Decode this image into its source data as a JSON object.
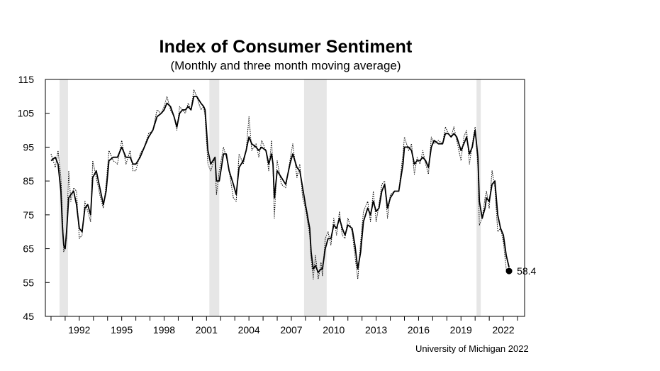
{
  "chart_data": {
    "type": "line",
    "title": "Index of Consumer Sentiment",
    "subtitle": "(Monthly and three month moving average)",
    "source": "University of Michigan 2022",
    "ylim": [
      45,
      115
    ],
    "xlim": [
      1989.6,
      2023.5
    ],
    "y_ticks": [
      45,
      55,
      65,
      75,
      85,
      95,
      105,
      115
    ],
    "x_ticks": [
      1992,
      1995,
      1998,
      2001,
      2004,
      2007,
      2010,
      2013,
      2016,
      2019,
      2022
    ],
    "recessions": [
      [
        1990.6,
        1991.2
      ],
      [
        2001.2,
        2001.9
      ],
      [
        2007.9,
        2009.5
      ],
      [
        2020.1,
        2020.4
      ]
    ],
    "last_point": {
      "x": 2022.4,
      "y": 58.4,
      "label": "58.4"
    },
    "series": [
      {
        "name": "Monthly",
        "style": "dotted",
        "points": [
          [
            1990.0,
            93
          ],
          [
            1990.3,
            89
          ],
          [
            1990.5,
            94
          ],
          [
            1990.7,
            86
          ],
          [
            1990.8,
            76
          ],
          [
            1990.9,
            64
          ],
          [
            1991.0,
            66
          ],
          [
            1991.1,
            68
          ],
          [
            1991.25,
            88
          ],
          [
            1991.4,
            79
          ],
          [
            1991.6,
            83
          ],
          [
            1991.8,
            82
          ],
          [
            1992.0,
            68
          ],
          [
            1992.2,
            69
          ],
          [
            1992.4,
            79
          ],
          [
            1992.6,
            76
          ],
          [
            1992.8,
            73
          ],
          [
            1992.95,
            91
          ],
          [
            1993.2,
            86
          ],
          [
            1993.5,
            80
          ],
          [
            1993.7,
            77
          ],
          [
            1993.9,
            84
          ],
          [
            1994.1,
            94
          ],
          [
            1994.4,
            91
          ],
          [
            1994.7,
            90
          ],
          [
            1995.0,
            97
          ],
          [
            1995.3,
            90
          ],
          [
            1995.6,
            94
          ],
          [
            1995.8,
            88
          ],
          [
            1996.0,
            88
          ],
          [
            1996.3,
            93
          ],
          [
            1996.6,
            95
          ],
          [
            1996.9,
            99
          ],
          [
            1997.2,
            100
          ],
          [
            1997.5,
            106
          ],
          [
            1997.8,
            105
          ],
          [
            1998.0,
            107
          ],
          [
            1998.2,
            110
          ],
          [
            1998.45,
            106
          ],
          [
            1998.7,
            104
          ],
          [
            1998.9,
            100
          ],
          [
            1999.1,
            107
          ],
          [
            1999.3,
            106
          ],
          [
            1999.5,
            105
          ],
          [
            1999.7,
            108
          ],
          [
            1999.9,
            106
          ],
          [
            2000.1,
            112
          ],
          [
            2000.3,
            110
          ],
          [
            2000.6,
            106
          ],
          [
            2000.8,
            107
          ],
          [
            2000.9,
            104
          ],
          [
            2001.1,
            90
          ],
          [
            2001.3,
            88
          ],
          [
            2001.6,
            92
          ],
          [
            2001.7,
            81
          ],
          [
            2001.9,
            88
          ],
          [
            2002.2,
            95
          ],
          [
            2002.4,
            92
          ],
          [
            2002.6,
            88
          ],
          [
            2002.9,
            80
          ],
          [
            2003.1,
            79
          ],
          [
            2003.3,
            93
          ],
          [
            2003.6,
            90
          ],
          [
            2003.8,
            94
          ],
          [
            2004.0,
            104
          ],
          [
            2004.2,
            94
          ],
          [
            2004.5,
            96
          ],
          [
            2004.7,
            92
          ],
          [
            2004.9,
            97
          ],
          [
            2005.2,
            94
          ],
          [
            2005.4,
            88
          ],
          [
            2005.6,
            97
          ],
          [
            2005.7,
            89
          ],
          [
            2005.8,
            74
          ],
          [
            2006.0,
            91
          ],
          [
            2006.3,
            84
          ],
          [
            2006.6,
            83
          ],
          [
            2006.9,
            91
          ],
          [
            2007.1,
            96
          ],
          [
            2007.4,
            86
          ],
          [
            2007.6,
            90
          ],
          [
            2007.8,
            80
          ],
          [
            2008.0,
            77
          ],
          [
            2008.3,
            69
          ],
          [
            2008.4,
            62
          ],
          [
            2008.55,
            56
          ],
          [
            2008.7,
            63
          ],
          [
            2008.9,
            56
          ],
          [
            2009.1,
            61
          ],
          [
            2009.2,
            57
          ],
          [
            2009.4,
            68
          ],
          [
            2009.6,
            70
          ],
          [
            2009.8,
            66
          ],
          [
            2010.0,
            74
          ],
          [
            2010.2,
            69
          ],
          [
            2010.4,
            76
          ],
          [
            2010.6,
            69
          ],
          [
            2010.8,
            68
          ],
          [
            2011.0,
            74
          ],
          [
            2011.3,
            70
          ],
          [
            2011.5,
            63
          ],
          [
            2011.7,
            56
          ],
          [
            2011.9,
            67
          ],
          [
            2012.1,
            76
          ],
          [
            2012.4,
            79
          ],
          [
            2012.6,
            73
          ],
          [
            2012.8,
            82
          ],
          [
            2013.0,
            73
          ],
          [
            2013.2,
            78
          ],
          [
            2013.4,
            84
          ],
          [
            2013.6,
            85
          ],
          [
            2013.8,
            74
          ],
          [
            2014.0,
            81
          ],
          [
            2014.3,
            82
          ],
          [
            2014.6,
            82
          ],
          [
            2014.9,
            93
          ],
          [
            2015.0,
            98
          ],
          [
            2015.3,
            94
          ],
          [
            2015.5,
            96
          ],
          [
            2015.7,
            87
          ],
          [
            2015.9,
            92
          ],
          [
            2016.1,
            90
          ],
          [
            2016.3,
            94
          ],
          [
            2016.5,
            90
          ],
          [
            2016.7,
            87
          ],
          [
            2016.9,
            98
          ],
          [
            2017.1,
            96
          ],
          [
            2017.4,
            97
          ],
          [
            2017.7,
            96
          ],
          [
            2017.9,
            101
          ],
          [
            2018.1,
            99
          ],
          [
            2018.3,
            98
          ],
          [
            2018.5,
            101
          ],
          [
            2018.7,
            97
          ],
          [
            2019.0,
            91
          ],
          [
            2019.2,
            98
          ],
          [
            2019.4,
            100
          ],
          [
            2019.6,
            90
          ],
          [
            2019.8,
            96
          ],
          [
            2020.0,
            101
          ],
          [
            2020.2,
            89
          ],
          [
            2020.3,
            72
          ],
          [
            2020.5,
            74
          ],
          [
            2020.7,
            80
          ],
          [
            2020.8,
            82
          ],
          [
            2021.0,
            77
          ],
          [
            2021.2,
            88
          ],
          [
            2021.4,
            83
          ],
          [
            2021.6,
            70
          ],
          [
            2021.8,
            71
          ],
          [
            2022.0,
            67
          ],
          [
            2022.2,
            59
          ],
          [
            2022.4,
            58.4
          ]
        ]
      },
      {
        "name": "Three month moving average",
        "style": "solid",
        "points": [
          [
            1990.0,
            91
          ],
          [
            1990.3,
            92
          ],
          [
            1990.5,
            90
          ],
          [
            1990.7,
            82
          ],
          [
            1990.8,
            72
          ],
          [
            1990.9,
            66
          ],
          [
            1991.0,
            65
          ],
          [
            1991.1,
            70
          ],
          [
            1991.25,
            80
          ],
          [
            1991.4,
            81
          ],
          [
            1991.6,
            82
          ],
          [
            1991.8,
            78
          ],
          [
            1992.0,
            71
          ],
          [
            1992.2,
            70
          ],
          [
            1992.4,
            77
          ],
          [
            1992.6,
            78
          ],
          [
            1992.8,
            75
          ],
          [
            1992.95,
            86
          ],
          [
            1993.2,
            88
          ],
          [
            1993.5,
            82
          ],
          [
            1993.7,
            78
          ],
          [
            1993.9,
            82
          ],
          [
            1994.1,
            91
          ],
          [
            1994.4,
            92
          ],
          [
            1994.7,
            92
          ],
          [
            1995.0,
            95
          ],
          [
            1995.3,
            92
          ],
          [
            1995.6,
            92
          ],
          [
            1995.8,
            90
          ],
          [
            1996.0,
            90
          ],
          [
            1996.3,
            92
          ],
          [
            1996.6,
            95
          ],
          [
            1996.9,
            98
          ],
          [
            1997.2,
            100
          ],
          [
            1997.5,
            104
          ],
          [
            1997.8,
            105
          ],
          [
            1998.0,
            106
          ],
          [
            1998.2,
            108
          ],
          [
            1998.45,
            107
          ],
          [
            1998.7,
            104
          ],
          [
            1998.9,
            101
          ],
          [
            1999.1,
            105
          ],
          [
            1999.3,
            106
          ],
          [
            1999.5,
            106
          ],
          [
            1999.7,
            107
          ],
          [
            1999.9,
            106
          ],
          [
            2000.1,
            110
          ],
          [
            2000.3,
            110
          ],
          [
            2000.6,
            108
          ],
          [
            2000.8,
            107
          ],
          [
            2000.9,
            106
          ],
          [
            2001.1,
            94
          ],
          [
            2001.3,
            90
          ],
          [
            2001.6,
            92
          ],
          [
            2001.7,
            85
          ],
          [
            2001.9,
            85
          ],
          [
            2002.2,
            93
          ],
          [
            2002.4,
            93
          ],
          [
            2002.6,
            88
          ],
          [
            2002.9,
            84
          ],
          [
            2003.1,
            81
          ],
          [
            2003.3,
            89
          ],
          [
            2003.6,
            91
          ],
          [
            2003.8,
            94
          ],
          [
            2004.0,
            98
          ],
          [
            2004.2,
            96
          ],
          [
            2004.5,
            95
          ],
          [
            2004.7,
            94
          ],
          [
            2004.9,
            95
          ],
          [
            2005.2,
            94
          ],
          [
            2005.4,
            90
          ],
          [
            2005.6,
            93
          ],
          [
            2005.7,
            90
          ],
          [
            2005.8,
            80
          ],
          [
            2006.0,
            88
          ],
          [
            2006.3,
            86
          ],
          [
            2006.6,
            84
          ],
          [
            2006.9,
            90
          ],
          [
            2007.1,
            93
          ],
          [
            2007.4,
            89
          ],
          [
            2007.6,
            88
          ],
          [
            2007.8,
            83
          ],
          [
            2008.0,
            78
          ],
          [
            2008.3,
            71
          ],
          [
            2008.4,
            64
          ],
          [
            2008.55,
            59
          ],
          [
            2008.7,
            60
          ],
          [
            2008.9,
            58
          ],
          [
            2009.1,
            59
          ],
          [
            2009.2,
            59
          ],
          [
            2009.4,
            65
          ],
          [
            2009.6,
            68
          ],
          [
            2009.8,
            68
          ],
          [
            2010.0,
            72
          ],
          [
            2010.2,
            71
          ],
          [
            2010.4,
            74
          ],
          [
            2010.6,
            71
          ],
          [
            2010.8,
            69
          ],
          [
            2011.0,
            72
          ],
          [
            2011.3,
            71
          ],
          [
            2011.5,
            66
          ],
          [
            2011.7,
            59
          ],
          [
            2011.9,
            64
          ],
          [
            2012.1,
            73
          ],
          [
            2012.4,
            77
          ],
          [
            2012.6,
            75
          ],
          [
            2012.8,
            79
          ],
          [
            2013.0,
            76
          ],
          [
            2013.2,
            77
          ],
          [
            2013.4,
            82
          ],
          [
            2013.6,
            84
          ],
          [
            2013.8,
            77
          ],
          [
            2014.0,
            80
          ],
          [
            2014.3,
            82
          ],
          [
            2014.6,
            82
          ],
          [
            2014.9,
            90
          ],
          [
            2015.0,
            95
          ],
          [
            2015.3,
            95
          ],
          [
            2015.5,
            94
          ],
          [
            2015.7,
            90
          ],
          [
            2015.9,
            91
          ],
          [
            2016.1,
            91
          ],
          [
            2016.3,
            92
          ],
          [
            2016.5,
            91
          ],
          [
            2016.7,
            89
          ],
          [
            2016.9,
            95
          ],
          [
            2017.1,
            97
          ],
          [
            2017.4,
            96
          ],
          [
            2017.7,
            96
          ],
          [
            2017.9,
            99
          ],
          [
            2018.1,
            99
          ],
          [
            2018.3,
            98
          ],
          [
            2018.5,
            99
          ],
          [
            2018.7,
            98
          ],
          [
            2019.0,
            94
          ],
          [
            2019.2,
            96
          ],
          [
            2019.4,
            98
          ],
          [
            2019.6,
            93
          ],
          [
            2019.8,
            95
          ],
          [
            2020.0,
            100
          ],
          [
            2020.2,
            92
          ],
          [
            2020.3,
            79
          ],
          [
            2020.5,
            74
          ],
          [
            2020.7,
            77
          ],
          [
            2020.8,
            80
          ],
          [
            2021.0,
            79
          ],
          [
            2021.2,
            84
          ],
          [
            2021.4,
            85
          ],
          [
            2021.6,
            75
          ],
          [
            2021.8,
            71
          ],
          [
            2022.0,
            69
          ],
          [
            2022.2,
            63
          ],
          [
            2022.4,
            59.5
          ]
        ]
      }
    ]
  }
}
